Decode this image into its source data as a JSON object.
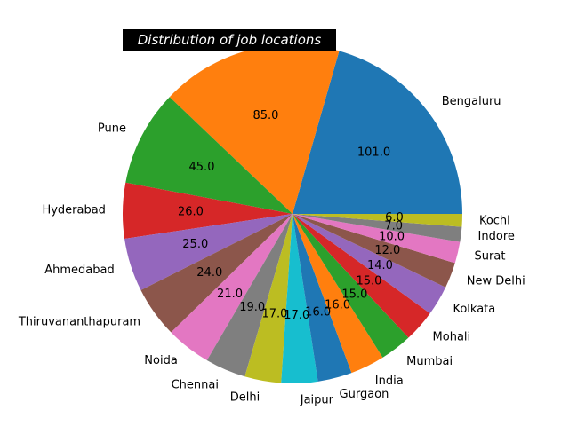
{
  "chart_data": {
    "type": "pie",
    "title": "Distribution of job locations",
    "categories": [
      "Bengaluru",
      "",
      "Pune",
      "Hyderabad",
      "Ahmedabad",
      "Thiruvananthapuram",
      "Noida",
      "Chennai",
      "Delhi",
      "Jaipur",
      "Gurgaon",
      "India",
      "Mumbai",
      "Mohali",
      "Kolkata",
      "New Delhi",
      "Surat",
      "Indore",
      "Kochi"
    ],
    "values": [
      101,
      85,
      45,
      26,
      25,
      24,
      21,
      19,
      17,
      17,
      16,
      16,
      15,
      15,
      14,
      12,
      10,
      7,
      6
    ],
    "value_labels": [
      "101.0",
      "85.0",
      "45.0",
      "26.0",
      "25.0",
      "24.0",
      "21.0",
      "19.0",
      "17.0",
      "17.0",
      "16.0",
      "16.0",
      "15.0",
      "15.0",
      "14.0",
      "12.0",
      "10.0",
      "7.0",
      "6.0"
    ],
    "colors": [
      "#1f77b4",
      "#ff7f0e",
      "#2ca02c",
      "#d62728",
      "#9467bd",
      "#8c564b",
      "#e377c2",
      "#7f7f7f",
      "#bcbd22",
      "#17becf",
      "#1f77b4",
      "#ff7f0e",
      "#2ca02c",
      "#d62728",
      "#9467bd",
      "#8c564b",
      "#e377c2",
      "#7f7f7f",
      "#bcbd22"
    ],
    "start_angle": 0,
    "direction": "counterclockwise",
    "title_background": "#000000",
    "title_color": "#ffffff"
  }
}
